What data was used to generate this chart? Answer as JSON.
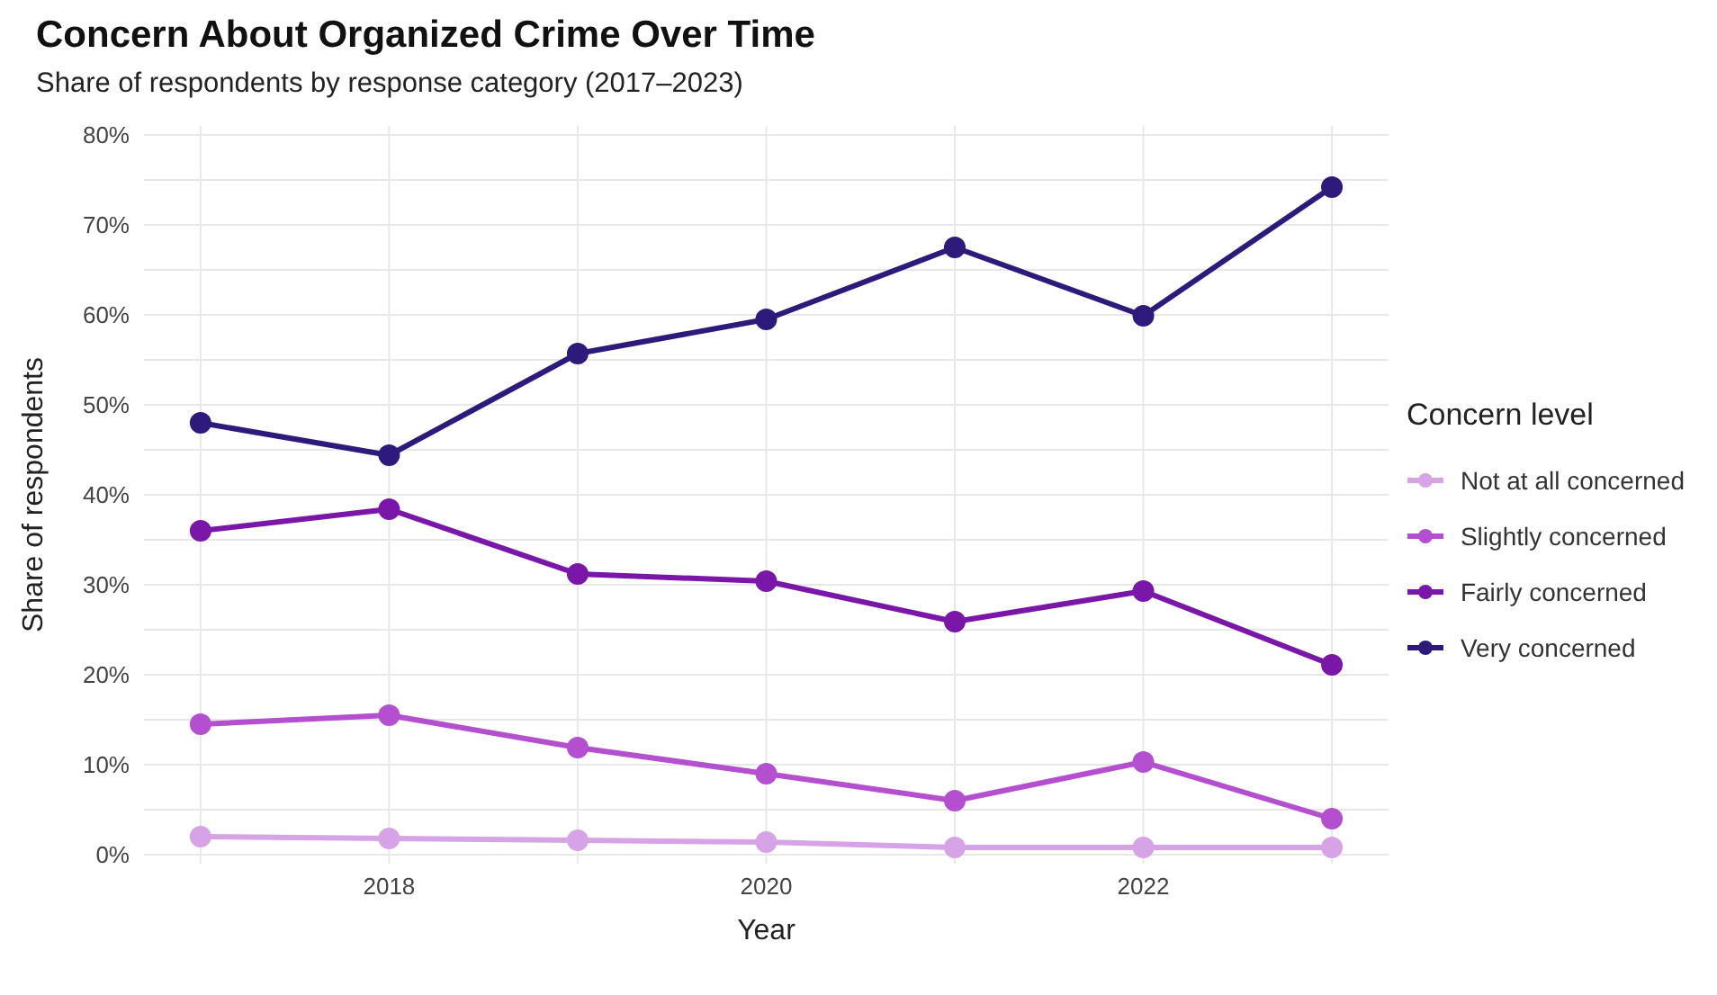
{
  "chart_data": {
    "type": "line",
    "title": "Concern About Organized Crime Over Time",
    "subtitle": "Share of respondents by response category (2017–2023)",
    "xlabel": "Year",
    "ylabel": "Share of respondents",
    "legend_title": "Concern level",
    "x": [
      2017,
      2018,
      2019,
      2020,
      2021,
      2022,
      2023
    ],
    "series": [
      {
        "name": "Not at all concerned",
        "color": "#d6a3e6",
        "values": [
          2.0,
          1.8,
          1.6,
          1.4,
          0.8,
          0.8,
          0.8
        ]
      },
      {
        "name": "Slightly concerned",
        "color": "#b44fcf",
        "values": [
          14.5,
          15.5,
          11.9,
          9.0,
          6.0,
          10.3,
          4.0
        ]
      },
      {
        "name": "Fairly concerned",
        "color": "#7a16a8",
        "values": [
          36.0,
          38.4,
          31.2,
          30.4,
          25.9,
          29.3,
          21.1
        ]
      },
      {
        "name": "Very concerned",
        "color": "#2e1a7a",
        "values": [
          48.0,
          44.4,
          55.7,
          59.5,
          67.5,
          59.9,
          74.2
        ]
      }
    ],
    "xlim": [
      2016.7,
      2023.3
    ],
    "xticks": [
      {
        "value": 2017,
        "label": null
      },
      2018,
      {
        "value": 2019,
        "label": null
      },
      2020,
      {
        "value": 2021,
        "label": null
      },
      2022,
      {
        "value": 2023,
        "label": null
      }
    ],
    "ylim": [
      -1,
      81
    ],
    "yticks": [
      {
        "value": 0,
        "label": "0%"
      },
      {
        "value": 5,
        "label": null
      },
      {
        "value": 10,
        "label": "10%"
      },
      {
        "value": 15,
        "label": null
      },
      {
        "value": 20,
        "label": "20%"
      },
      {
        "value": 25,
        "label": null
      },
      {
        "value": 30,
        "label": "30%"
      },
      {
        "value": 35,
        "label": null
      },
      {
        "value": 40,
        "label": "40%"
      },
      {
        "value": 45,
        "label": null
      },
      {
        "value": 50,
        "label": "50%"
      },
      {
        "value": 55,
        "label": null
      },
      {
        "value": 60,
        "label": "60%"
      },
      {
        "value": 65,
        "label": null
      },
      {
        "value": 70,
        "label": "70%"
      },
      {
        "value": 75,
        "label": null
      },
      {
        "value": 80,
        "label": "80%"
      }
    ],
    "grid": true,
    "legend": "right",
    "marker": "circle",
    "line_style": "solid"
  }
}
